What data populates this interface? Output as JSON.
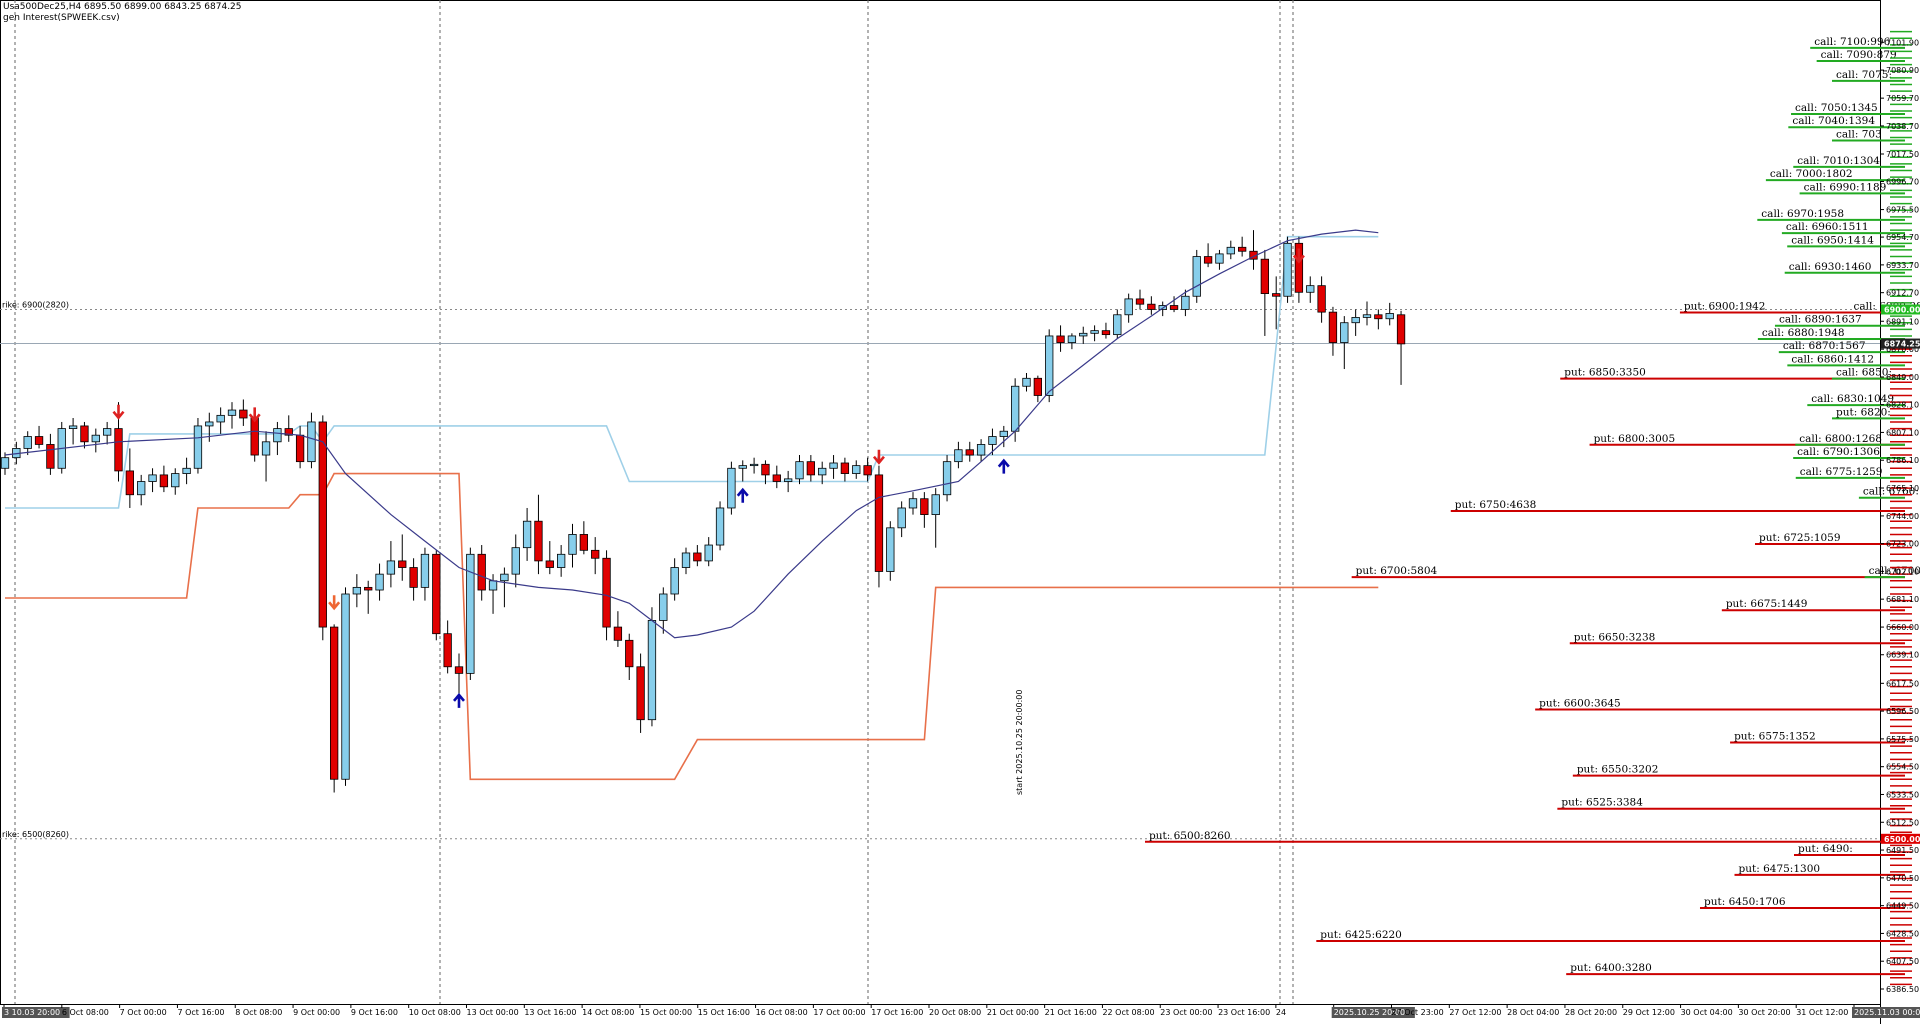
{
  "header": {
    "symbol_line": "Usa500Dec25,H4  6895.50 6899.00 6843.25 6874.25",
    "indicator_line": "gen Interest(SPWEEK.csv)"
  },
  "chart_data": {
    "type": "candlestick",
    "symbol": "Usa500Dec25",
    "timeframe": "H4",
    "ylim": [
      6386.5,
      7118
    ],
    "price_ticks": [
      "7101.90",
      "7080.90",
      "7059.70",
      "7038.70",
      "7017.50",
      "6996.70",
      "6975.50",
      "6954.70",
      "6933.70",
      "6912.70",
      "6891.10",
      "6870.00",
      "6849.00",
      "6828.10",
      "6807.10",
      "6786.10",
      "6765.10",
      "6744.00",
      "6723.00",
      "6702.10",
      "6681.10",
      "6660.00",
      "6639.10",
      "6617.50",
      "6596.50",
      "6575.50",
      "6554.50",
      "6533.50",
      "6512.50",
      "6491.50",
      "6470.50",
      "6449.50",
      "6428.50",
      "6407.50",
      "6386.50"
    ],
    "time_ticks": [
      "3 10.03 20:00",
      "6 Oct 08:00",
      "7 Oct 00:00",
      "7 Oct 16:00",
      "8 Oct 08:00",
      "9 Oct 00:00",
      "9 Oct 16:00",
      "10 Oct 08:00",
      "13 Oct 00:00",
      "13 Oct 16:00",
      "14 Oct 08:00",
      "15 Oct 00:00",
      "15 Oct 16:00",
      "16 Oct 08:00",
      "17 Oct 00:00",
      "17 Oct 16:00",
      "20 Oct 08:00",
      "21 Oct 00:00",
      "21 Oct 16:00",
      "22 Oct 08:00",
      "23 Oct 00:00",
      "23 Oct 16:00",
      "24",
      "2025.10.25 20:00",
      "27 Oct 23:00",
      "27 Oct 12:00",
      "28 Oct 04:00",
      "28 Oct 20:00",
      "29 Oct 12:00",
      "30 Oct 04:00",
      "30 Oct 20:00",
      "31 Oct 12:00",
      "2025.11.03 00:00"
    ],
    "current_price": "6874.25",
    "strike_tags": [
      {
        "price": 6900,
        "tag": "6900.00",
        "label": "rike: 6900(2820)"
      },
      {
        "price": 6500,
        "tag": "6500.00",
        "label": "rike: 6500(8260)"
      }
    ],
    "vertical_label": "start 2025.10.25 20:00:00",
    "candles": [
      [
        6780,
        6792,
        6775,
        6788
      ],
      [
        6788,
        6800,
        6783,
        6795
      ],
      [
        6795,
        6808,
        6790,
        6804
      ],
      [
        6804,
        6812,
        6795,
        6798
      ],
      [
        6798,
        6806,
        6775,
        6780
      ],
      [
        6780,
        6815,
        6776,
        6810
      ],
      [
        6810,
        6818,
        6798,
        6812
      ],
      [
        6812,
        6815,
        6795,
        6800
      ],
      [
        6800,
        6810,
        6792,
        6805
      ],
      [
        6805,
        6815,
        6798,
        6810
      ],
      [
        6810,
        6830,
        6770,
        6778
      ],
      [
        6778,
        6795,
        6750,
        6760
      ],
      [
        6760,
        6775,
        6752,
        6770
      ],
      [
        6770,
        6780,
        6762,
        6775
      ],
      [
        6775,
        6782,
        6762,
        6766
      ],
      [
        6766,
        6780,
        6760,
        6776
      ],
      [
        6776,
        6788,
        6768,
        6780
      ],
      [
        6780,
        6818,
        6776,
        6812
      ],
      [
        6812,
        6822,
        6800,
        6815
      ],
      [
        6815,
        6826,
        6806,
        6820
      ],
      [
        6820,
        6830,
        6810,
        6824
      ],
      [
        6824,
        6832,
        6812,
        6818
      ],
      [
        6818,
        6822,
        6785,
        6790
      ],
      [
        6790,
        6808,
        6770,
        6800
      ],
      [
        6800,
        6815,
        6790,
        6810
      ],
      [
        6810,
        6820,
        6800,
        6805
      ],
      [
        6805,
        6812,
        6780,
        6785
      ],
      [
        6785,
        6822,
        6780,
        6815
      ],
      [
        6815,
        6820,
        6650,
        6660
      ],
      [
        6660,
        6662,
        6535,
        6545
      ],
      [
        6545,
        6690,
        6540,
        6685
      ],
      [
        6685,
        6700,
        6675,
        6690
      ],
      [
        6690,
        6695,
        6670,
        6688
      ],
      [
        6688,
        6708,
        6680,
        6700
      ],
      [
        6700,
        6725,
        6690,
        6710
      ],
      [
        6710,
        6730,
        6695,
        6705
      ],
      [
        6705,
        6712,
        6680,
        6690
      ],
      [
        6690,
        6720,
        6680,
        6715
      ],
      [
        6715,
        6718,
        6650,
        6655
      ],
      [
        6655,
        6665,
        6625,
        6630
      ],
      [
        6630,
        6640,
        6600,
        6625
      ],
      [
        6625,
        6720,
        6620,
        6715
      ],
      [
        6715,
        6722,
        6680,
        6688
      ],
      [
        6688,
        6700,
        6670,
        6695
      ],
      [
        6695,
        6705,
        6675,
        6700
      ],
      [
        6700,
        6730,
        6690,
        6720
      ],
      [
        6720,
        6750,
        6710,
        6740
      ],
      [
        6740,
        6760,
        6700,
        6710
      ],
      [
        6710,
        6725,
        6700,
        6705
      ],
      [
        6705,
        6722,
        6698,
        6715
      ],
      [
        6715,
        6738,
        6705,
        6730
      ],
      [
        6730,
        6740,
        6715,
        6718
      ],
      [
        6718,
        6728,
        6700,
        6712
      ],
      [
        6712,
        6718,
        6650,
        6660
      ],
      [
        6660,
        6672,
        6645,
        6650
      ],
      [
        6650,
        6655,
        6620,
        6630
      ],
      [
        6630,
        6640,
        6580,
        6590
      ],
      [
        6590,
        6675,
        6585,
        6665
      ],
      [
        6665,
        6690,
        6655,
        6685
      ],
      [
        6685,
        6712,
        6680,
        6705
      ],
      [
        6705,
        6720,
        6700,
        6716
      ],
      [
        6716,
        6722,
        6706,
        6710
      ],
      [
        6710,
        6728,
        6706,
        6722
      ],
      [
        6722,
        6755,
        6718,
        6750
      ],
      [
        6750,
        6785,
        6745,
        6780
      ],
      [
        6780,
        6786,
        6770,
        6782
      ],
      [
        6782,
        6788,
        6776,
        6783
      ],
      [
        6783,
        6786,
        6768,
        6775
      ],
      [
        6775,
        6782,
        6765,
        6770
      ],
      [
        6770,
        6778,
        6762,
        6772
      ],
      [
        6772,
        6790,
        6768,
        6785
      ],
      [
        6785,
        6790,
        6770,
        6775
      ],
      [
        6775,
        6785,
        6768,
        6780
      ],
      [
        6780,
        6790,
        6772,
        6784
      ],
      [
        6784,
        6788,
        6770,
        6776
      ],
      [
        6776,
        6786,
        6772,
        6782
      ],
      [
        6782,
        6788,
        6770,
        6775
      ],
      [
        6775,
        6782,
        6690,
        6702
      ],
      [
        6702,
        6740,
        6695,
        6735
      ],
      [
        6735,
        6755,
        6728,
        6750
      ],
      [
        6750,
        6762,
        6745,
        6757
      ],
      [
        6757,
        6762,
        6735,
        6745
      ],
      [
        6745,
        6765,
        6720,
        6760
      ],
      [
        6760,
        6790,
        6755,
        6785
      ],
      [
        6785,
        6800,
        6780,
        6794
      ],
      [
        6794,
        6800,
        6785,
        6790
      ],
      [
        6790,
        6802,
        6785,
        6798
      ],
      [
        6798,
        6810,
        6790,
        6804
      ],
      [
        6804,
        6812,
        6796,
        6808
      ],
      [
        6808,
        6848,
        6800,
        6842
      ],
      [
        6842,
        6852,
        6838,
        6848
      ],
      [
        6848,
        6850,
        6830,
        6835
      ],
      [
        6835,
        6885,
        6830,
        6880
      ],
      [
        6880,
        6888,
        6868,
        6875
      ],
      [
        6875,
        6882,
        6870,
        6880
      ],
      [
        6880,
        6887,
        6874,
        6882
      ],
      [
        6882,
        6888,
        6876,
        6884
      ],
      [
        6884,
        6890,
        6878,
        6881
      ],
      [
        6881,
        6900,
        6878,
        6896
      ],
      [
        6896,
        6912,
        6890,
        6908
      ],
      [
        6908,
        6915,
        6900,
        6904
      ],
      [
        6904,
        6910,
        6896,
        6900
      ],
      [
        6900,
        6906,
        6895,
        6903
      ],
      [
        6903,
        6910,
        6898,
        6900
      ],
      [
        6900,
        6915,
        6895,
        6910
      ],
      [
        6910,
        6945,
        6905,
        6940
      ],
      [
        6940,
        6950,
        6932,
        6935
      ],
      [
        6935,
        6945,
        6930,
        6942
      ],
      [
        6942,
        6952,
        6938,
        6947
      ],
      [
        6947,
        6955,
        6940,
        6944
      ],
      [
        6944,
        6960,
        6930,
        6938
      ],
      [
        6938,
        6945,
        6880,
        6912
      ],
      [
        6912,
        6925,
        6885,
        6910
      ],
      [
        6910,
        6955,
        6905,
        6950
      ],
      [
        6950,
        6955,
        6905,
        6913
      ],
      [
        6913,
        6925,
        6905,
        6918
      ],
      [
        6918,
        6925,
        6890,
        6898
      ],
      [
        6898,
        6902,
        6865,
        6875
      ],
      [
        6875,
        6895,
        6855,
        6890
      ],
      [
        6890,
        6900,
        6880,
        6894
      ],
      [
        6894,
        6906,
        6888,
        6896
      ],
      [
        6896,
        6900,
        6885,
        6893
      ],
      [
        6893,
        6905,
        6888,
        6897
      ],
      [
        6896,
        6899,
        6843,
        6874
      ]
    ],
    "ma_line": [
      [
        0,
        6790
      ],
      [
        10,
        6800
      ],
      [
        17,
        6803
      ],
      [
        22,
        6808
      ],
      [
        26,
        6805
      ],
      [
        28,
        6800
      ],
      [
        30,
        6776
      ],
      [
        34,
        6745
      ],
      [
        37,
        6725
      ],
      [
        40,
        6705
      ],
      [
        43,
        6695
      ],
      [
        47,
        6690
      ],
      [
        50,
        6688
      ],
      [
        53,
        6684
      ],
      [
        55,
        6678
      ],
      [
        57,
        6665
      ],
      [
        59,
        6652
      ],
      [
        61,
        6654
      ],
      [
        64,
        6660
      ],
      [
        66,
        6672
      ],
      [
        69,
        6700
      ],
      [
        72,
        6725
      ],
      [
        75,
        6748
      ],
      [
        77,
        6758
      ],
      [
        80,
        6763
      ],
      [
        84,
        6770
      ],
      [
        86,
        6785
      ],
      [
        89,
        6808
      ],
      [
        92,
        6838
      ],
      [
        95,
        6858
      ],
      [
        98,
        6878
      ],
      [
        101,
        6895
      ],
      [
        104,
        6913
      ],
      [
        107,
        6927
      ],
      [
        110,
        6940
      ],
      [
        113,
        6952
      ],
      [
        116,
        6957
      ],
      [
        119,
        6960
      ],
      [
        121,
        6958
      ]
    ],
    "upper_band": [
      [
        0,
        6750
      ],
      [
        10,
        6750
      ],
      [
        11,
        6806
      ],
      [
        25,
        6806
      ],
      [
        26,
        6812
      ],
      [
        27,
        6812
      ],
      [
        28,
        6800
      ],
      [
        29,
        6812
      ],
      [
        53,
        6812
      ],
      [
        55,
        6770
      ],
      [
        63,
        6770
      ],
      [
        76,
        6770
      ],
      [
        77,
        6790
      ],
      [
        87,
        6790
      ],
      [
        88,
        6790
      ],
      [
        111,
        6790
      ],
      [
        113,
        6955
      ],
      [
        121,
        6955
      ]
    ],
    "lower_band": [
      [
        0,
        6682
      ],
      [
        16,
        6682
      ],
      [
        17,
        6750
      ],
      [
        25,
        6750
      ],
      [
        26,
        6760
      ],
      [
        28,
        6760
      ],
      [
        29,
        6776
      ],
      [
        40,
        6776
      ],
      [
        41,
        6545
      ],
      [
        59,
        6545
      ],
      [
        61,
        6575
      ],
      [
        81,
        6575
      ],
      [
        82,
        6690
      ],
      [
        121,
        6690
      ]
    ],
    "arrows": [
      {
        "i": 10,
        "dir": "down",
        "price": 6822,
        "color": "#dd2222"
      },
      {
        "i": 22,
        "dir": "down",
        "price": 6820,
        "color": "#dd2222"
      },
      {
        "i": 29,
        "dir": "down",
        "price": 6678,
        "color": "#ee6633"
      },
      {
        "i": 40,
        "dir": "up",
        "price": 6605,
        "color": "#0a0aaa"
      },
      {
        "i": 65,
        "dir": "up",
        "price": 6760,
        "color": "#0a0aaa"
      },
      {
        "i": 77,
        "dir": "down",
        "price": 6788,
        "color": "#dd2222"
      },
      {
        "i": 88,
        "dir": "up",
        "price": 6782,
        "color": "#0a0aaa"
      },
      {
        "i": 114,
        "dir": "down",
        "price": 6940,
        "color": "#dd2222"
      }
    ],
    "open_interest_labels": [
      {
        "type": "call",
        "text": "call: 7100:996",
        "price": 7100
      },
      {
        "type": "call",
        "text": "call: 7090:879",
        "price": 7090
      },
      {
        "type": "call",
        "text": "call: 7075:",
        "price": 7075
      },
      {
        "type": "call",
        "text": "call: 7050:1345",
        "price": 7050
      },
      {
        "type": "call",
        "text": "call: 7040:1394",
        "price": 7040
      },
      {
        "type": "call",
        "text": "call: 703",
        "price": 7030
      },
      {
        "type": "call",
        "text": "call: 7010:1304",
        "price": 7010
      },
      {
        "type": "call",
        "text": "call: 7000:1802",
        "price": 7000
      },
      {
        "type": "call",
        "text": "call: 6990:1189",
        "price": 6990
      },
      {
        "type": "call",
        "text": "call: 6970:1958",
        "price": 6970
      },
      {
        "type": "call",
        "text": "call: 6960:1511",
        "price": 6960
      },
      {
        "type": "call",
        "text": "call: 6950:1414",
        "price": 6950
      },
      {
        "type": "call",
        "text": "call: 6930:1460",
        "price": 6930
      },
      {
        "type": "call",
        "text": "call: 6900:282",
        "price": 6900
      },
      {
        "type": "put",
        "text": "put: 6900:1942",
        "price": 6900
      },
      {
        "type": "call",
        "text": "call: 6890:1637",
        "price": 6890
      },
      {
        "type": "call",
        "text": "call: 6880:1948",
        "price": 6880
      },
      {
        "type": "call",
        "text": "call: 6870:1567",
        "price": 6870
      },
      {
        "type": "call",
        "text": "call: 6860:1412",
        "price": 6860
      },
      {
        "type": "put",
        "text": "put: 6850:3350",
        "price": 6850
      },
      {
        "type": "call",
        "text": "call: 6850:",
        "price": 6850
      },
      {
        "type": "call",
        "text": "call: 6830:1049",
        "price": 6830
      },
      {
        "type": "call",
        "text": "put: 6820:",
        "price": 6820
      },
      {
        "type": "put",
        "text": "put: 6800:3005",
        "price": 6800
      },
      {
        "type": "call",
        "text": "call: 6800:1268",
        "price": 6800
      },
      {
        "type": "call",
        "text": "call: 6790:1306",
        "price": 6790
      },
      {
        "type": "call",
        "text": "call: 6775:1259",
        "price": 6775
      },
      {
        "type": "call",
        "text": "call: 6760:111",
        "price": 6760
      },
      {
        "type": "put",
        "text": "put: 6750:4638",
        "price": 6750
      },
      {
        "type": "put",
        "text": "put: 6725:1059",
        "price": 6725
      },
      {
        "type": "put",
        "text": "put: 6700:5804",
        "price": 6700
      },
      {
        "type": "call",
        "text": "call: 6700:7",
        "price": 6700
      },
      {
        "type": "put",
        "text": "put: 6675:1449",
        "price": 6675
      },
      {
        "type": "put",
        "text": "put: 6650:3238",
        "price": 6650
      },
      {
        "type": "put",
        "text": "put: 6600:3645",
        "price": 6600
      },
      {
        "type": "put",
        "text": "put: 6575:1352",
        "price": 6575
      },
      {
        "type": "put",
        "text": "put: 6550:3202",
        "price": 6550
      },
      {
        "type": "put",
        "text": "put: 6525:3384",
        "price": 6525
      },
      {
        "type": "put",
        "text": "put: 6500:8260",
        "price": 6500
      },
      {
        "type": "put",
        "text": "put: 6490:",
        "price": 6490
      },
      {
        "type": "put",
        "text": "put: 6475:1300",
        "price": 6475
      },
      {
        "type": "put",
        "text": "put: 6450:1706",
        "price": 6450
      },
      {
        "type": "put",
        "text": "put: 6425:6220",
        "price": 6425
      },
      {
        "type": "put",
        "text": "put: 6400:3280",
        "price": 6400
      }
    ],
    "colors": {
      "bull": "#87ceeb",
      "bear": "#e00000",
      "ma": "#3a3a8a",
      "upper_band": "#9fd0e8",
      "lower_band": "#e8704a",
      "call": "#22aa22",
      "put": "#cc0000",
      "grid": "#666666"
    }
  }
}
